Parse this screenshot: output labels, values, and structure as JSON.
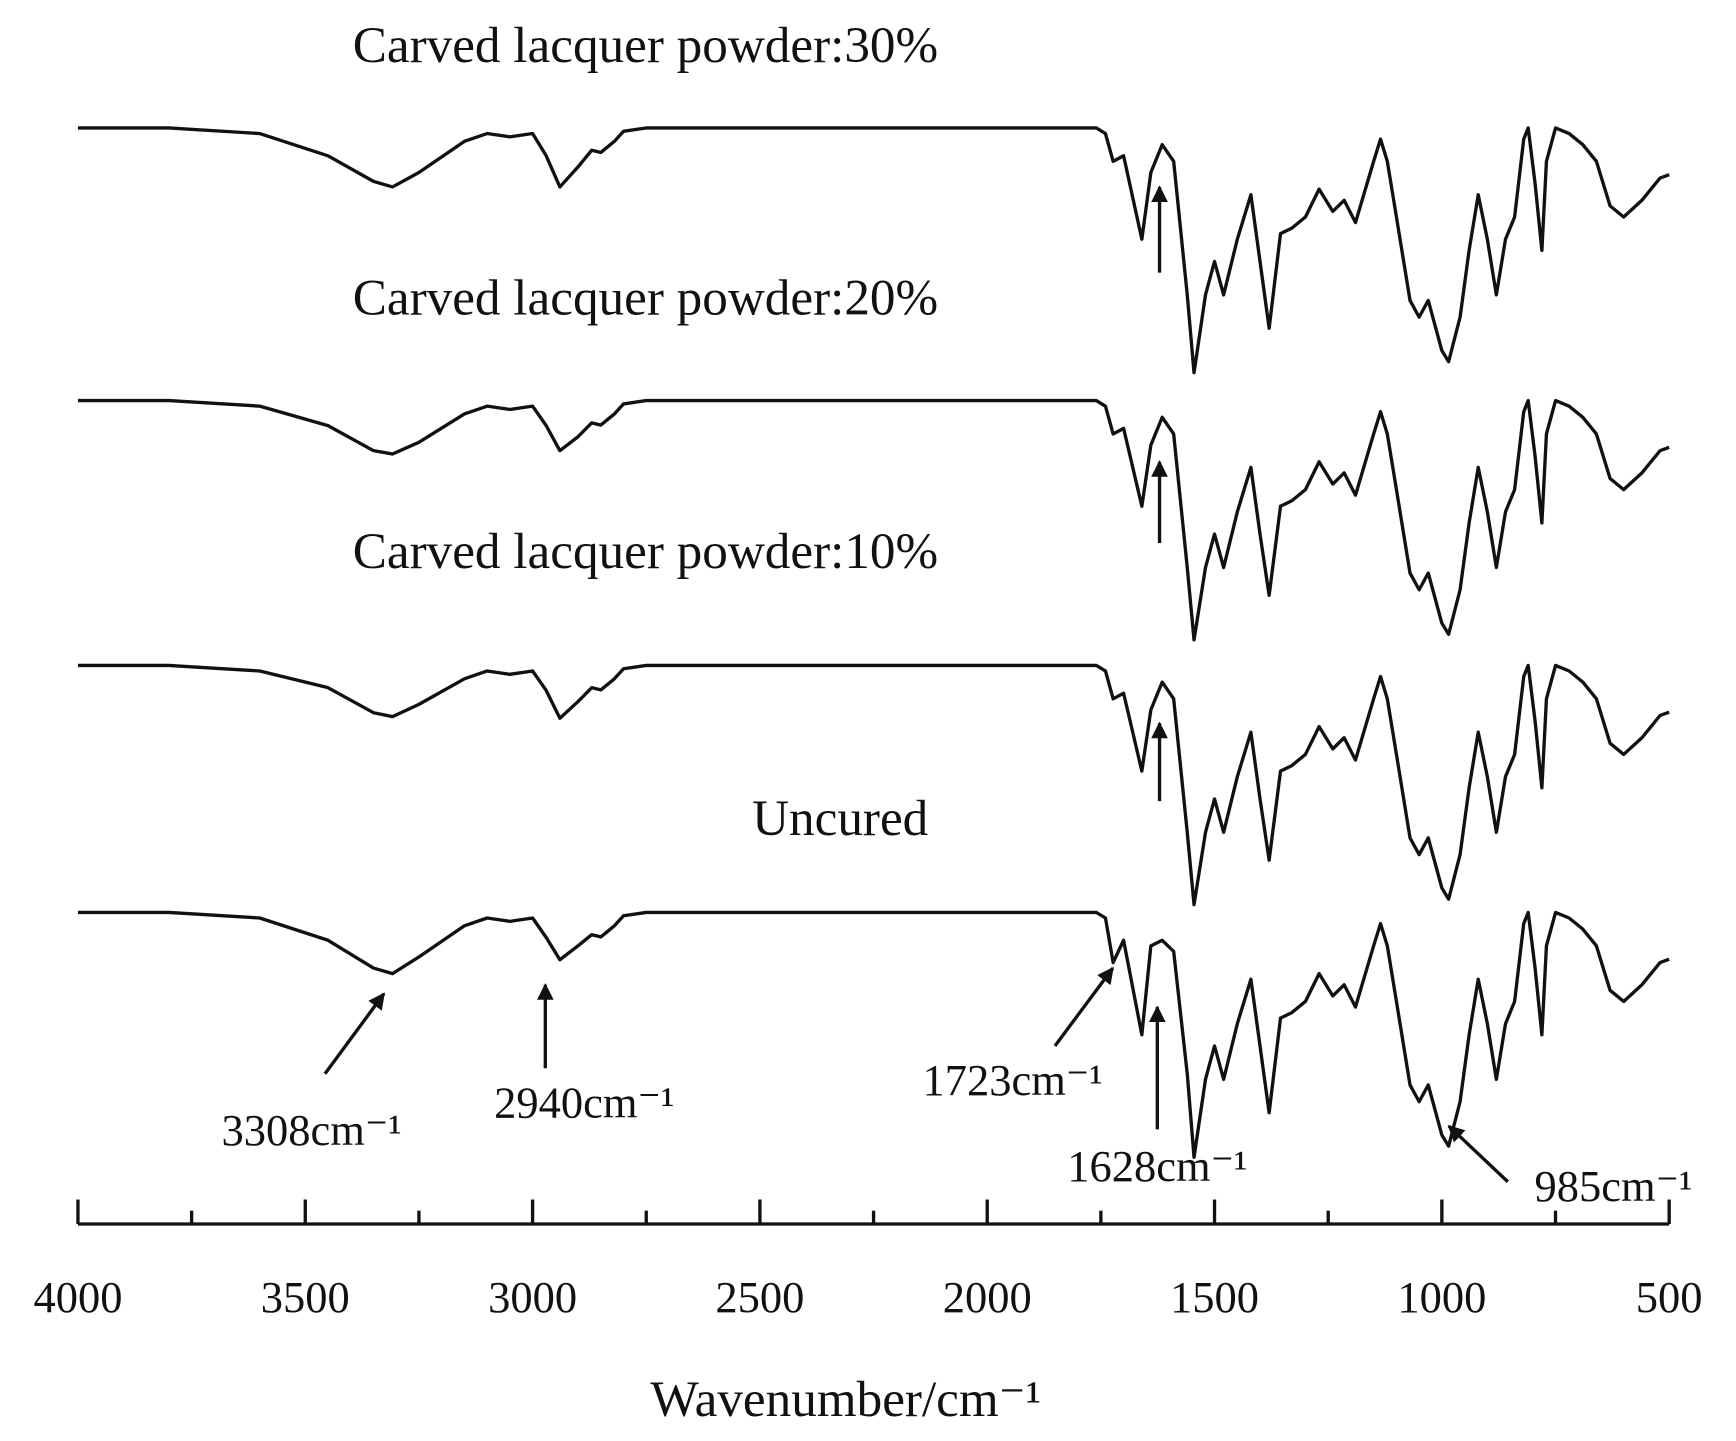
{
  "chart_data": {
    "type": "line",
    "xlabel": "Wavenumber/cm⁻¹",
    "xlim": [
      4000,
      500
    ],
    "xticks": [
      4000,
      3500,
      3000,
      2500,
      2000,
      1500,
      1000,
      500
    ],
    "minor_xticks": [
      3750,
      3250,
      2750,
      2250,
      1750,
      1250,
      750
    ],
    "x": [
      4000,
      3800,
      3600,
      3450,
      3350,
      3308,
      3250,
      3150,
      3100,
      3050,
      3000,
      2970,
      2940,
      2900,
      2870,
      2850,
      2820,
      2800,
      2750,
      1760,
      1740,
      1723,
      1700,
      1660,
      1640,
      1615,
      1590,
      1560,
      1545,
      1520,
      1500,
      1480,
      1450,
      1420,
      1400,
      1380,
      1355,
      1330,
      1300,
      1270,
      1240,
      1215,
      1190,
      1150,
      1135,
      1120,
      1100,
      1070,
      1050,
      1030,
      1000,
      985,
      960,
      940,
      920,
      900,
      880,
      860,
      840,
      820,
      810,
      795,
      780,
      770,
      750,
      720,
      690,
      660,
      630,
      600,
      560,
      520,
      500
    ],
    "series": [
      {
        "name": "Carved lacquer powder:30%",
        "color": "#111111",
        "values": [
          100,
          100,
          98,
          90,
          80.8,
          78.8,
          84,
          95.2,
          98,
          96.8,
          98,
          90,
          78.8,
          86,
          92,
          91.2,
          95.2,
          98.8,
          100,
          100,
          98,
          88,
          90,
          60,
          84,
          94,
          88,
          40,
          12,
          40,
          52,
          40,
          60,
          76,
          52,
          28,
          62,
          64,
          68,
          78,
          70,
          74,
          66,
          88,
          96,
          88,
          68,
          38,
          32,
          38,
          20,
          16,
          32,
          56,
          76,
          60,
          40,
          60,
          68,
          96,
          100,
          80,
          56,
          88,
          100,
          98,
          94,
          88,
          72,
          68,
          74,
          82,
          83.2
        ]
      },
      {
        "name": "Carved lacquer powder:20%",
        "color": "#111111",
        "values": [
          100,
          100,
          98,
          91,
          82,
          80.8,
          85,
          95.2,
          98,
          96.8,
          98,
          91,
          82,
          87,
          92,
          91.2,
          95.2,
          98.8,
          100,
          100,
          98,
          88,
          90,
          62,
          84,
          94,
          88,
          40,
          14,
          40,
          52,
          40,
          60,
          76,
          52,
          30,
          62,
          64,
          68,
          78,
          70,
          74,
          66,
          88,
          96,
          88,
          68,
          38,
          32,
          38,
          20,
          16,
          32,
          56,
          76,
          60,
          40,
          60,
          68,
          96,
          100,
          80,
          56,
          88,
          100,
          98,
          94,
          88,
          72,
          68,
          74,
          82,
          83.2
        ]
      },
      {
        "name": "Carved lacquer powder:10%",
        "color": "#111111",
        "values": [
          100,
          100,
          98,
          92,
          83,
          81.6,
          86,
          95.2,
          98,
          96.8,
          98,
          91,
          81,
          87,
          92,
          91.2,
          95.2,
          98.8,
          100,
          100,
          98,
          88,
          90,
          62,
          84,
          94,
          88,
          40,
          14,
          40,
          52,
          40,
          60,
          76,
          52,
          30,
          62,
          64,
          68,
          78,
          70,
          74,
          66,
          88,
          96,
          88,
          68,
          38,
          32,
          38,
          20,
          16,
          32,
          56,
          76,
          60,
          40,
          60,
          68,
          96,
          100,
          80,
          56,
          88,
          100,
          98,
          94,
          88,
          72,
          68,
          74,
          82,
          83.2
        ]
      },
      {
        "name": "Uncured",
        "color": "#111111",
        "values": [
          100,
          100,
          98,
          90,
          80,
          78,
          84,
          95.2,
          98,
          96.8,
          98,
          91,
          83,
          88,
          92,
          91.2,
          95.2,
          98.8,
          100,
          100,
          98,
          82,
          90,
          56,
          88,
          90,
          86,
          42,
          12,
          40,
          52,
          40,
          60,
          76,
          52,
          28,
          62,
          64,
          68,
          78,
          70,
          74,
          66,
          88,
          96,
          88,
          68,
          38,
          32,
          38,
          20,
          16,
          32,
          56,
          76,
          60,
          40,
          60,
          68,
          96,
          100,
          80,
          56,
          88,
          100,
          98,
          94,
          88,
          72,
          68,
          74,
          82,
          83.2
        ]
      }
    ],
    "annotations": [
      "3308cm⁻¹",
      "2940cm⁻¹",
      "1723cm⁻¹",
      "1628cm⁻¹",
      "985cm⁻¹"
    ]
  }
}
